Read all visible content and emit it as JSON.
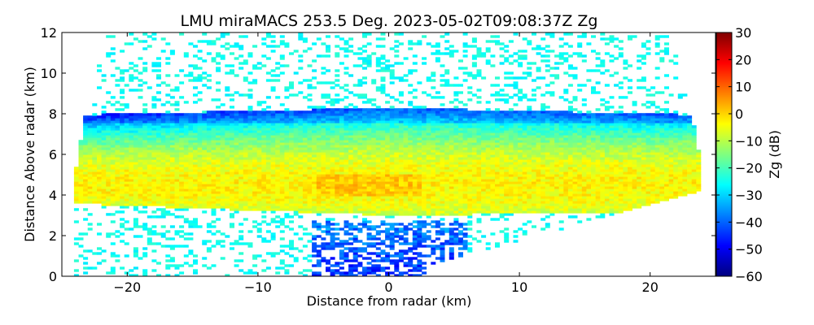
{
  "chart_data": {
    "type": "heatmap",
    "title": "LMU miraMACS 253.5 Deg. 2023-05-02T09:08:37Z  Zg",
    "xlabel": "Distance from radar (km)",
    "ylabel": "Distance Above radar  (km)",
    "xlim": [
      -25,
      25
    ],
    "ylim": [
      0,
      12
    ],
    "xticks": [
      -20,
      -10,
      0,
      10,
      20
    ],
    "xtick_labels": [
      "−20",
      "−10",
      "0",
      "10",
      "20"
    ],
    "yticks": [
      0,
      2,
      4,
      6,
      8,
      10,
      12
    ],
    "ytick_labels": [
      "0",
      "2",
      "4",
      "6",
      "8",
      "10",
      "12"
    ],
    "grid": false,
    "colorbar": {
      "label": "Zg (dB)",
      "colormap": "jet",
      "range": [
        -60,
        30
      ],
      "ticks": [
        -60,
        -50,
        -40,
        -30,
        -20,
        -10,
        0,
        10,
        20,
        30
      ],
      "tick_labels": [
        "−60",
        "−50",
        "−40",
        "−30",
        "−20",
        "−10",
        "0",
        "10",
        "20",
        "30"
      ]
    },
    "scan_elevation_limit_deg": 10,
    "cloud_layer": {
      "base_km": 3.0,
      "top_km": 8.3,
      "dense_core_km": [
        3.5,
        5.5
      ],
      "typical_zg_db": [
        -15,
        0
      ]
    },
    "background_zg_db": -25,
    "near_radar_zg_db": -45
  }
}
